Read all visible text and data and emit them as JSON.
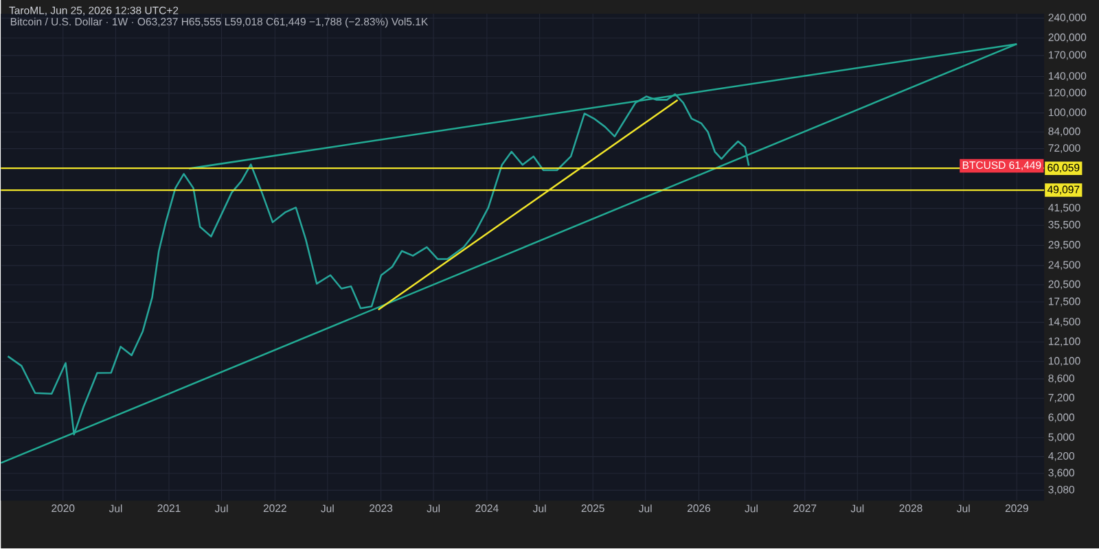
{
  "chart_data": {
    "type": "line",
    "title": "TaroML, Jun 25, 2026 12:38 UTC+2",
    "subtitle": "Bitcoin / U.S. Dollar · 1W · O63,237 H65,555 L59,018 C61,449 −1,788 (−2.83%) Vol5.1K",
    "log": "y",
    "grid": true,
    "xlim": [
      "2019-06-01",
      "2029-04-05"
    ],
    "ylim": [
      2800,
      250000
    ],
    "xticks": [
      {
        "value": "2020-01-01",
        "label": "2020"
      },
      {
        "value": "2020-07-01",
        "label": "Jul"
      },
      {
        "value": "2021-01-01",
        "label": "2021"
      },
      {
        "value": "2021-07-01",
        "label": "Jul"
      },
      {
        "value": "2022-01-01",
        "label": "2022"
      },
      {
        "value": "2022-07-01",
        "label": "Jul"
      },
      {
        "value": "2023-01-01",
        "label": "2023"
      },
      {
        "value": "2023-07-01",
        "label": "Jul"
      },
      {
        "value": "2024-01-01",
        "label": "2024"
      },
      {
        "value": "2024-07-01",
        "label": "Jul"
      },
      {
        "value": "2025-01-01",
        "label": "2025"
      },
      {
        "value": "2025-07-01",
        "label": "Jul"
      },
      {
        "value": "2026-01-01",
        "label": "2026"
      },
      {
        "value": "2026-07-01",
        "label": "Jul"
      },
      {
        "value": "2027-01-01",
        "label": "2027"
      },
      {
        "value": "2027-07-01",
        "label": "Jul"
      },
      {
        "value": "2028-01-01",
        "label": "2028"
      },
      {
        "value": "2028-07-01",
        "label": "Jul"
      },
      {
        "value": "2029-01-01",
        "label": "2029"
      }
    ],
    "yticks": [
      {
        "value": 3080,
        "label": "3,080"
      },
      {
        "value": 3600,
        "label": "3,600"
      },
      {
        "value": 4200,
        "label": "4,200"
      },
      {
        "value": 5000,
        "label": "5,000"
      },
      {
        "value": 6000,
        "label": "6,000"
      },
      {
        "value": 7200,
        "label": "7,200"
      },
      {
        "value": 8600,
        "label": "8,600"
      },
      {
        "value": 10100,
        "label": "10,100"
      },
      {
        "value": 12100,
        "label": "12,100"
      },
      {
        "value": 14500,
        "label": "14,500"
      },
      {
        "value": 17500,
        "label": "17,500"
      },
      {
        "value": 20500,
        "label": "20,500"
      },
      {
        "value": 24500,
        "label": "24,500"
      },
      {
        "value": 29500,
        "label": "29,500"
      },
      {
        "value": 35500,
        "label": "35,500"
      },
      {
        "value": 41500,
        "label": "41,500"
      },
      {
        "value": 72000,
        "label": "72,000"
      },
      {
        "value": 84000,
        "label": "84,000"
      },
      {
        "value": 100000,
        "label": "100,000"
      },
      {
        "value": 120000,
        "label": "120,000"
      },
      {
        "value": 140000,
        "label": "140,000"
      },
      {
        "value": 170000,
        "label": "170,000"
      },
      {
        "value": 200000,
        "label": "200,000"
      },
      {
        "value": 240000,
        "label": "240,000"
      }
    ],
    "series": [
      {
        "color": "#26a69a",
        "x": [
          "2019-06-25",
          "2019-08-11",
          "2019-09-27",
          "2019-11-23",
          "2020-01-10",
          "2020-02-08",
          "2020-03-12",
          "2020-04-28",
          "2020-06-15",
          "2020-07-18",
          "2020-08-25",
          "2020-10-02",
          "2020-11-04",
          "2020-11-27",
          "2020-12-21",
          "2021-01-23",
          "2021-02-21",
          "2021-03-26",
          "2021-04-18",
          "2021-05-26",
          "2021-07-08",
          "2021-08-05",
          "2021-09-07",
          "2021-10-10",
          "2021-11-17",
          "2021-12-24",
          "2022-02-05",
          "2022-03-14",
          "2022-04-17",
          "2022-05-25",
          "2022-07-11",
          "2022-08-18",
          "2022-09-20",
          "2022-10-23",
          "2022-11-30",
          "2023-01-02",
          "2023-02-09",
          "2023-03-14",
          "2023-04-21",
          "2023-06-08",
          "2023-07-15",
          "2023-08-18",
          "2023-10-13",
          "2023-11-20",
          "2024-01-06",
          "2024-02-22",
          "2024-03-26",
          "2024-05-03",
          "2024-06-10",
          "2024-07-14",
          "2024-08-30",
          "2024-10-17",
          "2024-12-03",
          "2025-01-05",
          "2025-02-12",
          "2025-03-17",
          "2025-04-24",
          "2025-05-28",
          "2025-07-04",
          "2025-08-07",
          "2025-09-13",
          "2025-10-11",
          "2025-11-08",
          "2025-12-07",
          "2026-01-09",
          "2026-02-01",
          "2026-02-25",
          "2026-03-20",
          "2026-04-13",
          "2026-05-16",
          "2026-06-09",
          "2026-06-22"
        ],
        "values": [
          10600,
          9700,
          7550,
          7500,
          9960,
          5150,
          6650,
          9080,
          9100,
          11580,
          10700,
          13300,
          18250,
          28000,
          36500,
          50000,
          57000,
          50000,
          35000,
          32000,
          40900,
          48000,
          53300,
          62200,
          48000,
          36500,
          40000,
          41800,
          31200,
          20700,
          22400,
          19800,
          20200,
          16500,
          16800,
          22400,
          24200,
          28000,
          26800,
          29000,
          26000,
          26000,
          29000,
          33000,
          41800,
          62000,
          70000,
          62000,
          67000,
          59000,
          59000,
          67000,
          99500,
          95000,
          88000,
          80500,
          95000,
          110000,
          116500,
          113000,
          113000,
          119000,
          110000,
          95000,
          91000,
          84000,
          70000,
          65500,
          70500,
          77000,
          73000,
          61449
        ]
      },
      {
        "color": "#22ab94",
        "x": [
          "2021-03-11",
          "2029-01-01"
        ],
        "values": [
          59900,
          189000
        ]
      },
      {
        "color": "#22ab94",
        "x": [
          "2019-06-01",
          "2029-01-01"
        ],
        "values": [
          3960,
          189000
        ]
      },
      {
        "color": "#f2e62a",
        "x": [
          "2022-12-23",
          "2025-10-20"
        ],
        "values": [
          16300,
          112700
        ]
      }
    ],
    "ref_lines": [
      {
        "axis": "y",
        "value": 60059,
        "label": "60,059",
        "color": "#f2e62a"
      },
      {
        "axis": "y",
        "value": 49097,
        "label": "49,097",
        "color": "#f2e62a"
      }
    ],
    "annotations": [
      "BTCUSD 61,449"
    ]
  }
}
